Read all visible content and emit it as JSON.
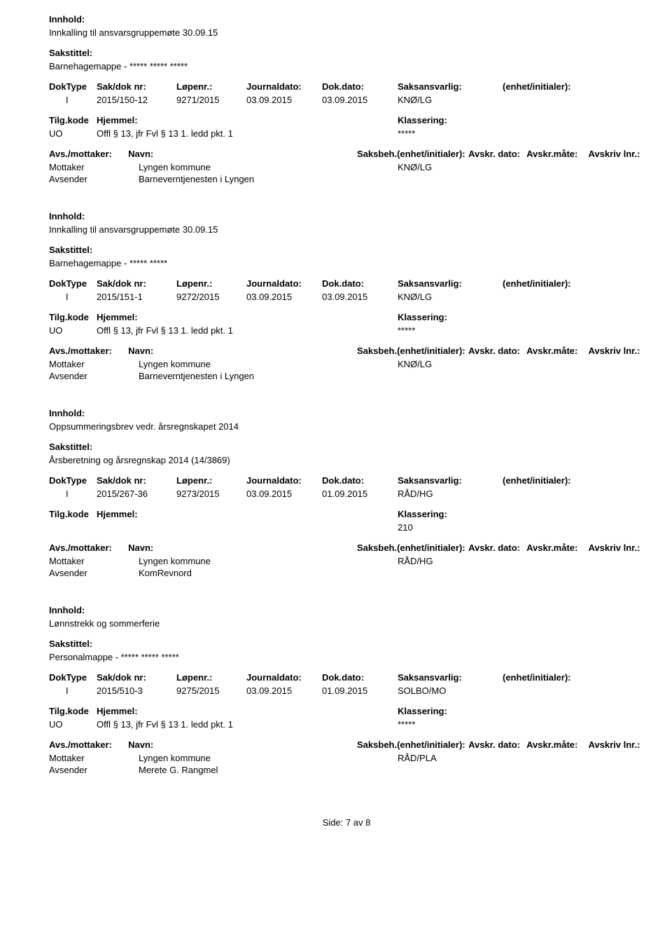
{
  "labels": {
    "innhold": "Innhold:",
    "sakstittel": "Sakstittel:",
    "doktype": "DokType",
    "sakdoknr": "Sak/dok nr:",
    "lopenr": "Løpenr.:",
    "journaldato": "Journaldato:",
    "dokdato": "Dok.dato:",
    "saksansvarlig": "Saksansvarlig:",
    "enhet": "(enhet/initialer):",
    "tilgkode": "Tilg.kode",
    "hjemmel": "Hjemmel:",
    "klassering": "Klassering:",
    "avsmottaker": "Avs./mottaker:",
    "navn": "Navn:",
    "saksbeh": "Saksbeh.(enhet/initialer):",
    "avskrdato": "Avskr. dato:",
    "avskrmate": "Avskr.måte:",
    "avskrivlnr": "Avskriv lnr.:",
    "mottaker": "Mottaker",
    "avsender": "Avsender"
  },
  "records": [
    {
      "innhold": "Innkalling til ansvarsgruppemøte 30.09.15",
      "sakstittel": "Barnehagemappe - ***** ***** *****",
      "doktype": "I",
      "sakdoknr": "2015/150-12",
      "lopenr": "9271/2015",
      "journaldato": "03.09.2015",
      "dokdato": "03.09.2015",
      "saksansvarlig": "KNØ/LG",
      "enhet": "",
      "tilgkode": "UO",
      "hjemmel": "Offl § 13, jfr Fvl § 13 1. ledd pkt. 1",
      "klassering": "*****",
      "mottaker_navn": "Lyngen kommune",
      "saksbeh_val": "KNØ/LG",
      "avsender_navn": "Barneverntjenesten i Lyngen"
    },
    {
      "innhold": "Innkalling til ansvarsgruppemøte 30.09.15",
      "sakstittel": "Barnehagemappe - ***** *****",
      "doktype": "I",
      "sakdoknr": "2015/151-1",
      "lopenr": "9272/2015",
      "journaldato": "03.09.2015",
      "dokdato": "03.09.2015",
      "saksansvarlig": "KNØ/LG",
      "enhet": "",
      "tilgkode": "UO",
      "hjemmel": "Offl § 13, jfr Fvl § 13 1. ledd pkt. 1",
      "klassering": "*****",
      "mottaker_navn": "Lyngen kommune",
      "saksbeh_val": "KNØ/LG",
      "avsender_navn": "Barneverntjenesten i Lyngen"
    },
    {
      "innhold": "Oppsummeringsbrev vedr. årsregnskapet 2014",
      "sakstittel": "Årsberetning og årsregnskap 2014 (14/3869)",
      "doktype": "I",
      "sakdoknr": "2015/267-36",
      "lopenr": "9273/2015",
      "journaldato": "03.09.2015",
      "dokdato": "01.09.2015",
      "saksansvarlig": "RÅD/HG",
      "enhet": "",
      "tilgkode": "",
      "hjemmel": "",
      "klassering": "210",
      "mottaker_navn": "Lyngen kommune",
      "saksbeh_val": "RÅD/HG",
      "avsender_navn": "KomRevnord"
    },
    {
      "innhold": "Lønnstrekk og sommerferie",
      "sakstittel": "Personalmappe - ***** ***** *****",
      "doktype": "I",
      "sakdoknr": "2015/510-3",
      "lopenr": "9275/2015",
      "journaldato": "03.09.2015",
      "dokdato": "01.09.2015",
      "saksansvarlig": "SOLBO/MO",
      "enhet": "",
      "tilgkode": "UO",
      "hjemmel": "Offl § 13, jfr Fvl § 13 1. ledd pkt. 1",
      "klassering": "*****",
      "mottaker_navn": "Lyngen kommune",
      "saksbeh_val": "RÅD/PLA",
      "avsender_navn": "Merete G. Rangmel"
    }
  ],
  "footer": {
    "side": "Side:",
    "current": "7",
    "av": "av",
    "total": "8"
  }
}
